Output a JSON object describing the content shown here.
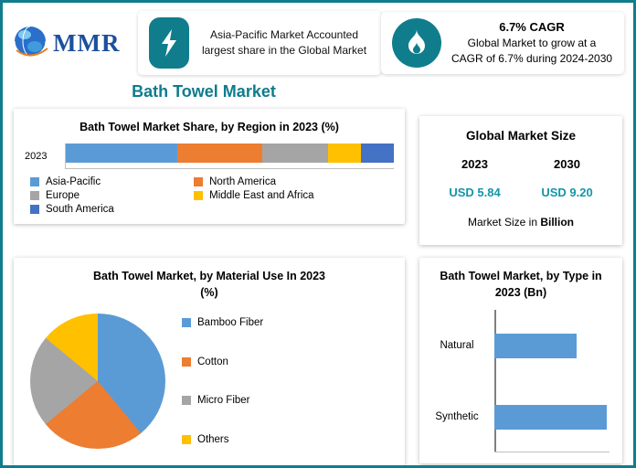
{
  "accent_color": "#0f7d8c",
  "header": {
    "logo_text": "MMR",
    "callout_share": {
      "icon": "lightning-icon",
      "text": "Asia-Pacific Market Accounted largest share in the Global Market"
    },
    "callout_cagr": {
      "icon": "flame-icon",
      "title": "6.7% CAGR",
      "text": "Global Market to grow at a CAGR of 6.7% during 2024-2030"
    }
  },
  "title": "Bath Towel Market",
  "market_size": {
    "title": "Global Market Size",
    "columns": [
      {
        "year": "2023",
        "value": "USD 5.84"
      },
      {
        "year": "2030",
        "value": "USD 9.20"
      }
    ],
    "note_prefix": "Market Size in",
    "note_unit": "Billion",
    "value_color": "#1495a9"
  },
  "chart_data": [
    {
      "id": "region_share",
      "type": "bar",
      "variant": "stacked-horizontal",
      "title": "Bath Towel Market Share, by Region in 2023 (%)",
      "categories": [
        "2023"
      ],
      "series": [
        {
          "name": "Asia-Pacific",
          "color": "#5b9bd5",
          "values": [
            34
          ]
        },
        {
          "name": "North America",
          "color": "#ed7d31",
          "values": [
            26
          ]
        },
        {
          "name": "Europe",
          "color": "#a5a5a5",
          "values": [
            20
          ]
        },
        {
          "name": "Middle East and Africa",
          "color": "#ffc000",
          "values": [
            10
          ]
        },
        {
          "name": "South America",
          "color": "#4472c4",
          "values": [
            10
          ]
        }
      ],
      "xlim": [
        0,
        100
      ],
      "legend_position": "bottom",
      "grid": false
    },
    {
      "id": "material_use",
      "type": "pie",
      "title": "Bath Towel Market, by Material Use In 2023 (%)",
      "categories": [
        "Bamboo Fiber",
        "Cotton",
        "Micro Fiber",
        "Others"
      ],
      "values": [
        39,
        25,
        22,
        14
      ],
      "colors": [
        "#5b9bd5",
        "#ed7d31",
        "#a5a5a5",
        "#ffc000"
      ],
      "legend_position": "right"
    },
    {
      "id": "by_type",
      "type": "bar",
      "variant": "horizontal",
      "title": "Bath Towel Market, by Type in 2023 (Bn)",
      "categories": [
        "Natural",
        "Synthetic"
      ],
      "values": [
        2.5,
        3.4
      ],
      "color": "#5b9bd5",
      "xlim": [
        0,
        3.6
      ],
      "grid": false
    }
  ]
}
